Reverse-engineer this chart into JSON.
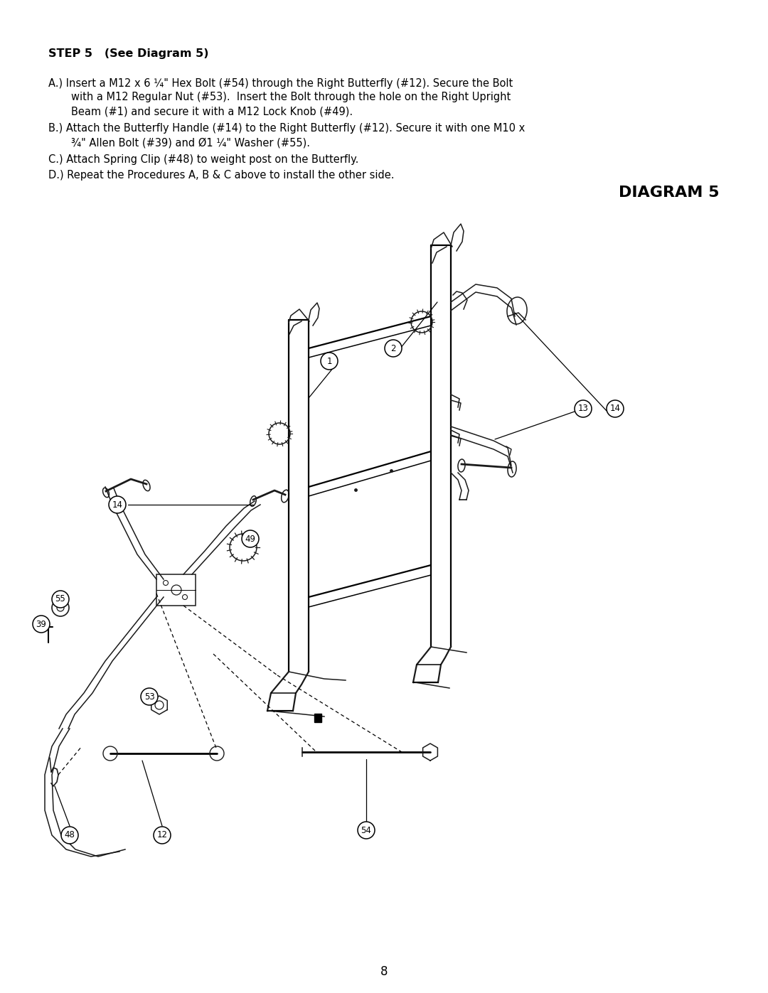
{
  "background_color": "#ffffff",
  "page_width": 10.8,
  "page_height": 13.97,
  "text_color": "#000000",
  "title_text": "STEP 5   (See Diagram 5)",
  "line_A1": "A.) Insert a M12 x 6 ¼\" Hex Bolt (#54) through the Right Butterfly (#12). Secure the Bolt",
  "line_A2": "with a M12 Regular Nut (#53).  Insert the Bolt through the hole on the Right Upright",
  "line_A3": "Beam (#1) and secure it with a M12 Lock Knob (#49).",
  "line_B1": "B.) Attach the Butterfly Handle (#14) to the Right Butterfly (#12). Secure it with one M10 x",
  "line_B2": "¾\" Allen Bolt (#39) and Ø1 ¼\" Washer (#55).",
  "line_C": "C.) Attach Spring Clip (#48) to weight post on the Butterfly.",
  "line_D": "D.) Repeat the Procedures A, B & C above to install the other side.",
  "diagram_title": "DIAGRAM 5",
  "page_number": "8",
  "title_fontsize": 11.5,
  "body_fontsize": 10.5,
  "diagram_title_fontsize": 16,
  "page_num_fontsize": 12
}
